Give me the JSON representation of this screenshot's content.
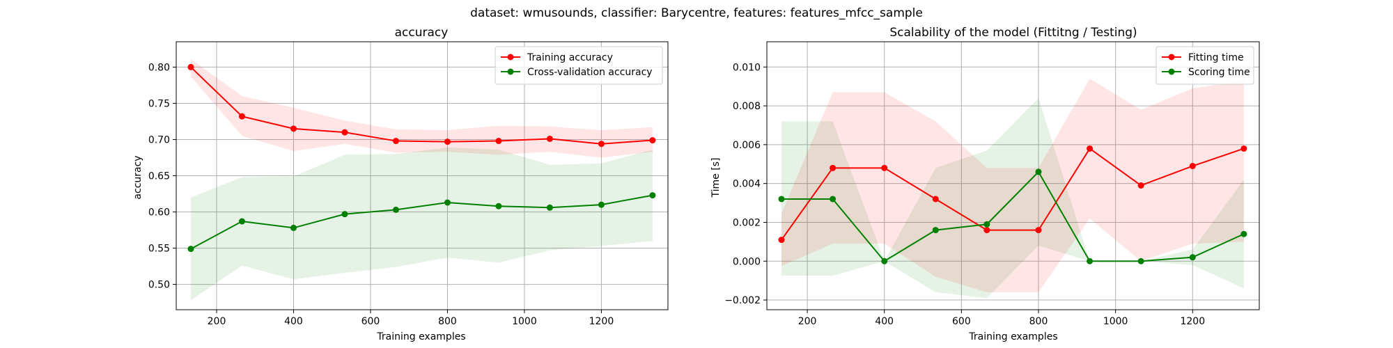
{
  "figure": {
    "suptitle": "dataset: wmusounds, classifier: Barycentre, features: features_mfcc_sample"
  },
  "chart_data": [
    {
      "type": "line",
      "title": "accuracy",
      "xlabel": "Training examples",
      "ylabel": "accuracy",
      "xlim": [
        95,
        1373
      ],
      "ylim": [
        0.465,
        0.835
      ],
      "xticks": [
        200,
        400,
        600,
        800,
        1000,
        1200
      ],
      "yticks": [
        0.5,
        0.55,
        0.6,
        0.65,
        0.7,
        0.75,
        0.8
      ],
      "ytick_labels": [
        "0.50",
        "0.55",
        "0.60",
        "0.65",
        "0.70",
        "0.75",
        "0.80"
      ],
      "grid": true,
      "legend_position": "top-right",
      "x": [
        133,
        266,
        400,
        533,
        666,
        800,
        933,
        1066,
        1200,
        1333
      ],
      "series": [
        {
          "name": "Training accuracy",
          "color": "#ff0000",
          "values": [
            0.8,
            0.732,
            0.715,
            0.71,
            0.698,
            0.697,
            0.698,
            0.701,
            0.694,
            0.699
          ],
          "band_low": [
            0.787,
            0.705,
            0.684,
            0.694,
            0.682,
            0.683,
            0.679,
            0.683,
            0.675,
            0.683
          ],
          "band_high": [
            0.811,
            0.76,
            0.744,
            0.726,
            0.714,
            0.713,
            0.719,
            0.718,
            0.713,
            0.717
          ]
        },
        {
          "name": "Cross-validation accuracy",
          "color": "#008000",
          "values": [
            0.549,
            0.587,
            0.578,
            0.597,
            0.603,
            0.613,
            0.608,
            0.606,
            0.61,
            0.623
          ],
          "band_low": [
            0.478,
            0.526,
            0.507,
            0.516,
            0.524,
            0.537,
            0.53,
            0.547,
            0.553,
            0.56
          ],
          "band_high": [
            0.62,
            0.648,
            0.649,
            0.679,
            0.68,
            0.689,
            0.686,
            0.665,
            0.667,
            0.686
          ]
        }
      ]
    },
    {
      "type": "line",
      "title": "Scalability of the model (Fittitng / Testing)",
      "xlabel": "Training examples",
      "ylabel": "Time [s]",
      "xlim": [
        95,
        1373
      ],
      "ylim": [
        -0.0025,
        0.0113
      ],
      "xticks": [
        200,
        400,
        600,
        800,
        1000,
        1200
      ],
      "yticks": [
        -0.002,
        0.0,
        0.002,
        0.004,
        0.006,
        0.008,
        0.01
      ],
      "ytick_labels": [
        "−0.002",
        "0.000",
        "0.002",
        "0.004",
        "0.006",
        "0.008",
        "0.010"
      ],
      "grid": true,
      "legend_position": "top-right",
      "x": [
        133,
        266,
        400,
        533,
        666,
        800,
        933,
        1066,
        1200,
        1333
      ],
      "series": [
        {
          "name": "Fitting time",
          "color": "#ff0000",
          "values": [
            0.0011,
            0.0048,
            0.0048,
            0.0032,
            0.0016,
            0.0016,
            0.0058,
            0.0039,
            0.0049,
            0.0058
          ],
          "band_low": [
            -0.00025,
            0.0009,
            0.0009,
            -0.0008,
            -0.0016,
            -0.0016,
            0.0022,
            0.0,
            0.0009,
            0.001
          ],
          "band_high": [
            0.00245,
            0.0087,
            0.0087,
            0.0072,
            0.0048,
            0.0048,
            0.0094,
            0.0078,
            0.0089,
            0.0093
          ]
        },
        {
          "name": "Scoring time",
          "color": "#008000",
          "values": [
            0.0032,
            0.0032,
            0.0,
            0.0016,
            0.0019,
            0.0046,
            0.0,
            0.0,
            0.0002,
            0.0014
          ],
          "band_low": [
            -0.00075,
            -0.00075,
            0.0,
            -0.0016,
            -0.0019,
            0.0008,
            0.0,
            0.0,
            -0.0002,
            -0.0014
          ],
          "band_high": [
            0.0072,
            0.0072,
            0.0,
            0.0048,
            0.0057,
            0.0084,
            0.0,
            0.0,
            0.0006,
            0.0042
          ]
        }
      ]
    }
  ]
}
